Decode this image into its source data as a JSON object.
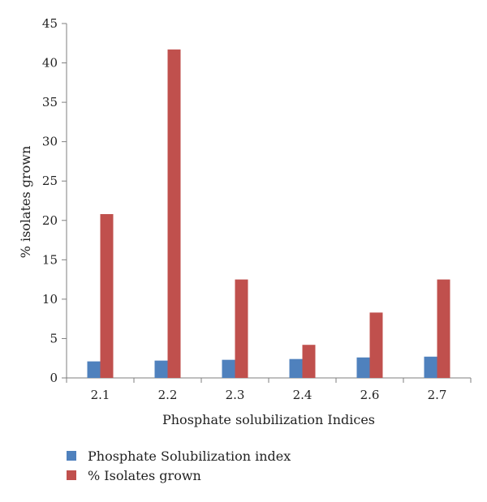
{
  "chart_data": {
    "type": "bar",
    "title": "",
    "xlabel": "Phosphate solubilization Indices",
    "ylabel": "% isolates grown",
    "categories": [
      "2.1",
      "2.2",
      "2.3",
      "2.4",
      "2.6",
      "2.7"
    ],
    "series": [
      {
        "name": "Phosphate Solubilization index",
        "values": [
          2.1,
          2.2,
          2.3,
          2.4,
          2.6,
          2.7
        ],
        "color": "#4f81bd"
      },
      {
        "name": "% Isolates grown",
        "values": [
          20.8,
          41.7,
          12.5,
          4.2,
          8.3,
          12.5
        ],
        "color": "#c0504d"
      }
    ],
    "ylim": [
      0,
      45
    ],
    "yticks": [
      "0",
      "5",
      "10",
      "15",
      "20",
      "25",
      "30",
      "35",
      "40",
      "45"
    ],
    "grid": false,
    "legend_position": "bottom-left"
  }
}
